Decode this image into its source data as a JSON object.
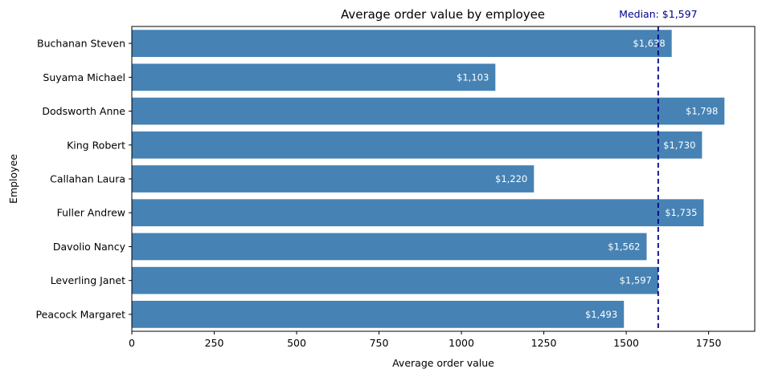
{
  "chart_data": {
    "type": "bar",
    "orientation": "horizontal",
    "title": "Average order value by employee",
    "xlabel": "Average order value",
    "ylabel": "Employee",
    "categories": [
      "Buchanan Steven",
      "Suyama Michael",
      "Dodsworth Anne",
      "King Robert",
      "Callahan Laura",
      "Fuller Andrew",
      "Davolio Nancy",
      "Leverling Janet",
      "Peacock Margaret"
    ],
    "values": [
      1638,
      1103,
      1798,
      1730,
      1220,
      1735,
      1562,
      1597,
      1493
    ],
    "data_labels": [
      "$1,638",
      "$1,103",
      "$1,798",
      "$1,730",
      "$1,220",
      "$1,735",
      "$1,562",
      "$1,597",
      "$1,493"
    ],
    "xlim": [
      0,
      1890
    ],
    "xticks": [
      0,
      250,
      500,
      750,
      1000,
      1250,
      1500,
      1750
    ],
    "grid": false,
    "bar_color": "#4682b4",
    "median": {
      "value": 1597,
      "label": "Median: $1,597",
      "color": "#00008b",
      "style": "dashed"
    }
  }
}
